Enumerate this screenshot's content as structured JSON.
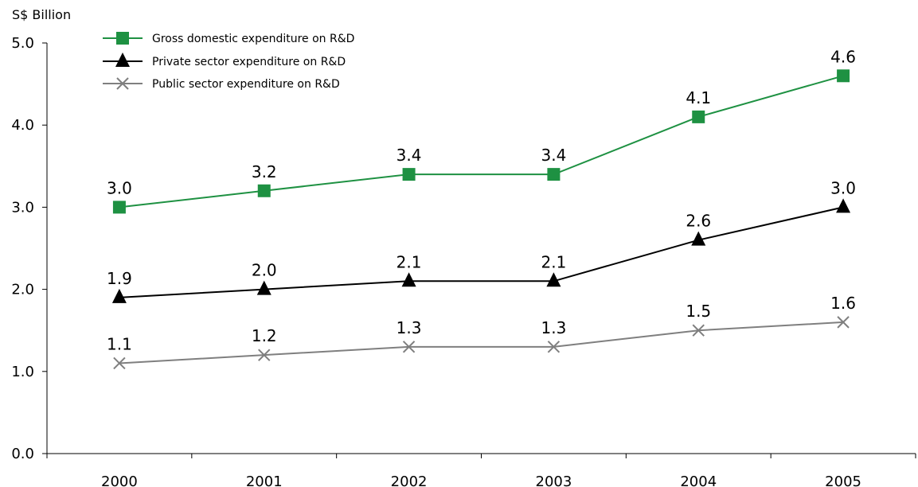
{
  "chart_data": {
    "type": "line",
    "ylabel": "S$ Billion",
    "ylim": [
      0,
      5
    ],
    "yticks": [
      "0.0",
      "1.0",
      "2.0",
      "3.0",
      "4.0",
      "5.0"
    ],
    "categories": [
      "2000",
      "2001",
      "2002",
      "2003",
      "2004",
      "2005"
    ],
    "grid": false,
    "legend_position": "top-left",
    "series": [
      {
        "name": "Gross domestic expenditure on R&D",
        "color": "#1e9142",
        "marker": "square",
        "values": [
          3.0,
          3.2,
          3.4,
          3.4,
          4.1,
          4.6
        ],
        "labels": [
          "3.0",
          "3.2",
          "3.4",
          "3.4",
          "4.1",
          "4.6"
        ]
      },
      {
        "name": "Private sector expenditure on R&D",
        "color": "#000000",
        "marker": "triangle",
        "values": [
          1.9,
          2.0,
          2.1,
          2.1,
          2.6,
          3.0
        ],
        "labels": [
          "1.9",
          "2.0",
          "2.1",
          "2.1",
          "2.6",
          "3.0"
        ]
      },
      {
        "name": "Public sector expenditure on R&D",
        "color": "#7f7f7f",
        "marker": "x",
        "values": [
          1.1,
          1.2,
          1.3,
          1.3,
          1.5,
          1.6
        ],
        "labels": [
          "1.1",
          "1.2",
          "1.3",
          "1.3",
          "1.5",
          "1.6"
        ]
      }
    ]
  }
}
